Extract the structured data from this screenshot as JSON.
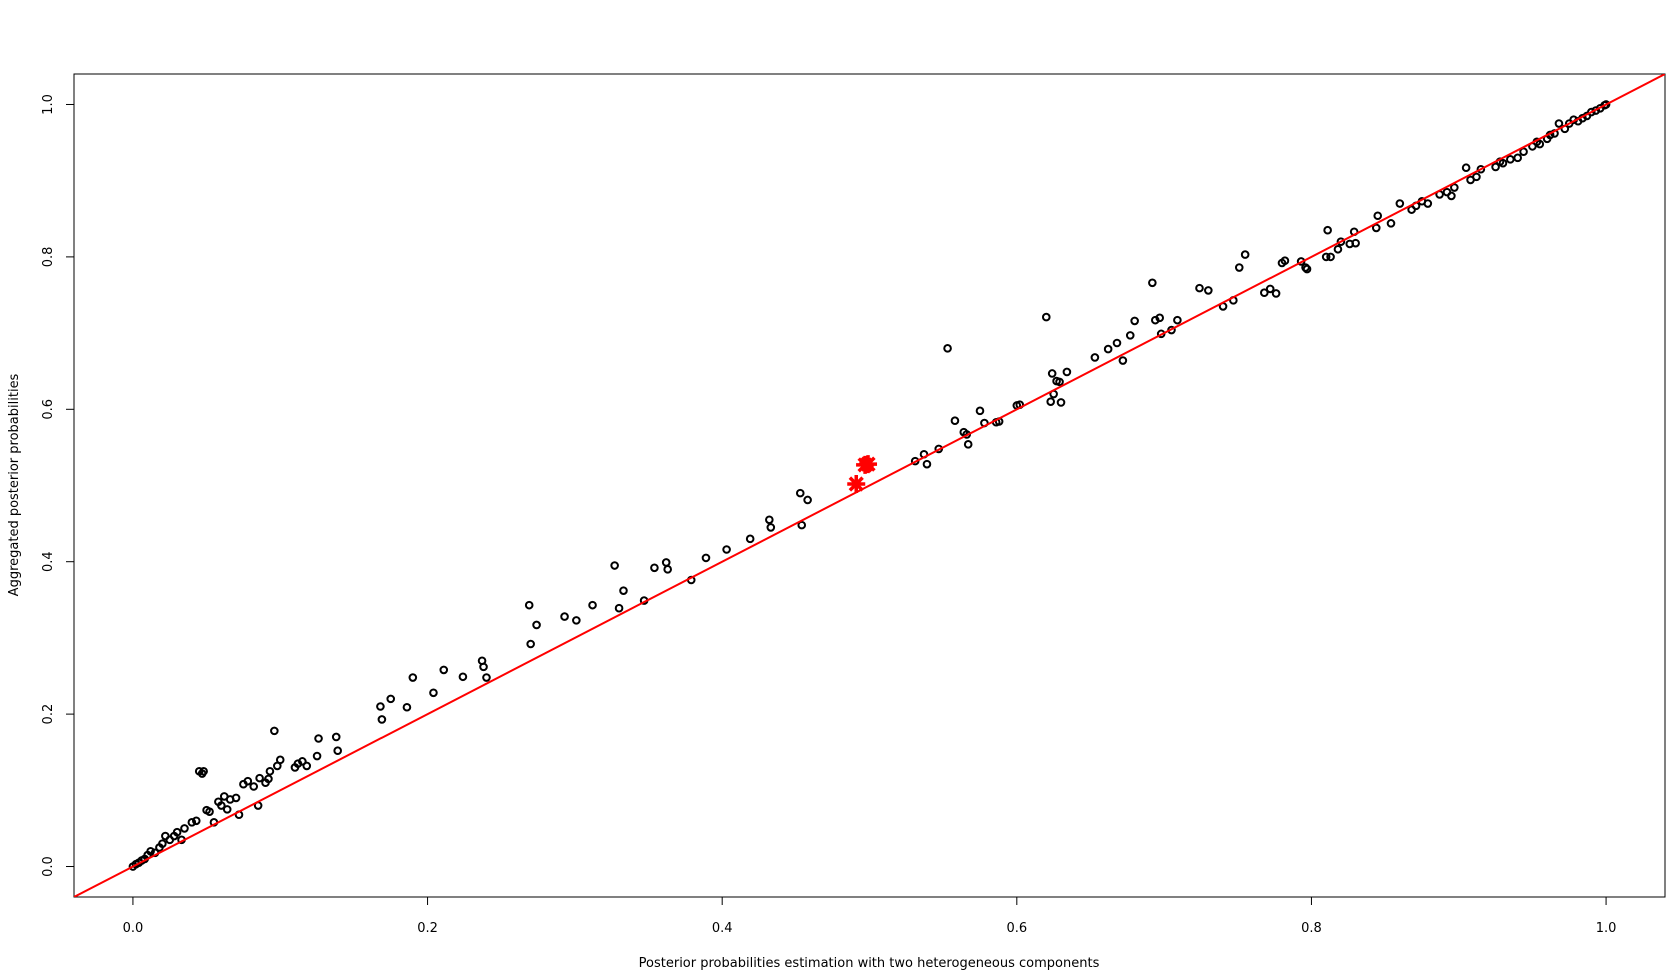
{
  "chart_data": {
    "type": "scatter",
    "x_label": "Posterior probabilities estimation with two heterogeneous components",
    "y_label": "Aggregated posterior probabilities",
    "xlim": [
      -0.04,
      1.04
    ],
    "ylim": [
      -0.04,
      1.04
    ],
    "xticks": [
      {
        "value": 0,
        "label": "0.0"
      },
      0.2,
      0.4,
      0.6,
      0.8,
      {
        "value": 1,
        "label": "1.0"
      }
    ],
    "yticks": [
      {
        "value": 0,
        "label": "0.0"
      },
      0.2,
      0.4,
      0.6,
      0.8,
      {
        "value": 1,
        "label": "1.0"
      }
    ],
    "grid": false,
    "reference_line": {
      "intercept": 0,
      "slope": 1,
      "color": "#ff0000"
    },
    "points": {
      "color": "#000000",
      "x": [
        0,
        0.002,
        0.004,
        0.006,
        0.008,
        0.01,
        0.012,
        0.015,
        0.018,
        0.02,
        0.022,
        0.025,
        0.028,
        0.03,
        0.033,
        0.035,
        0.04,
        0.043,
        0.045,
        0.047,
        0.048,
        0.05,
        0.052,
        0.055,
        0.058,
        0.06,
        0.062,
        0.064,
        0.066,
        0.07,
        0.072,
        0.075,
        0.078,
        0.082,
        0.085,
        0.086,
        0.09,
        0.092,
        0.093,
        0.096,
        0.098,
        0.1,
        0.11,
        0.112,
        0.115,
        0.118,
        0.125,
        0.126,
        0.138,
        0.139,
        0.168,
        0.169,
        0.175,
        0.186,
        0.19,
        0.204,
        0.211,
        0.224,
        0.237,
        0.238,
        0.24,
        0.269,
        0.27,
        0.274,
        0.293,
        0.301,
        0.312,
        0.327,
        0.33,
        0.333,
        0.347,
        0.354,
        0.362,
        0.363,
        0.379,
        0.389,
        0.403,
        0.419,
        0.432,
        0.433,
        0.453,
        0.454,
        0.458,
        0.531,
        0.537,
        0.539,
        0.547,
        0.553,
        0.558,
        0.564,
        0.566,
        0.567,
        0.575,
        0.578,
        0.586,
        0.588,
        0.6,
        0.602,
        0.62,
        0.623,
        0.624,
        0.625,
        0.627,
        0.629,
        0.63,
        0.634,
        0.653,
        0.662,
        0.668,
        0.672,
        0.677,
        0.68,
        0.692,
        0.694,
        0.697,
        0.698,
        0.705,
        0.709,
        0.724,
        0.73,
        0.74,
        0.747,
        0.751,
        0.755,
        0.768,
        0.772,
        0.776,
        0.78,
        0.782,
        0.793,
        0.796,
        0.797,
        0.81,
        0.811,
        0.813,
        0.818,
        0.82,
        0.826,
        0.829,
        0.83,
        0.844,
        0.845,
        0.854,
        0.86,
        0.868,
        0.871,
        0.875,
        0.879,
        0.887,
        0.892,
        0.895,
        0.897,
        0.905,
        0.908,
        0.912,
        0.915,
        0.925,
        0.928,
        0.93,
        0.935,
        0.94,
        0.944,
        0.95,
        0.953,
        0.955,
        0.96,
        0.962,
        0.965,
        0.968,
        0.972,
        0.975,
        0.978,
        0.981,
        0.984,
        0.987,
        0.99,
        0.993,
        0.996,
        0.999,
        1
      ],
      "y": [
        0,
        0.003,
        0.005,
        0.008,
        0.01,
        0.015,
        0.02,
        0.018,
        0.025,
        0.03,
        0.04,
        0.035,
        0.04,
        0.045,
        0.035,
        0.05,
        0.058,
        0.06,
        0.125,
        0.122,
        0.125,
        0.074,
        0.072,
        0.058,
        0.085,
        0.08,
        0.092,
        0.075,
        0.088,
        0.09,
        0.068,
        0.108,
        0.112,
        0.105,
        0.08,
        0.116,
        0.11,
        0.115,
        0.125,
        0.178,
        0.132,
        0.14,
        0.13,
        0.135,
        0.138,
        0.132,
        0.145,
        0.168,
        0.17,
        0.152,
        0.21,
        0.193,
        0.22,
        0.209,
        0.248,
        0.228,
        0.258,
        0.249,
        0.27,
        0.262,
        0.248,
        0.343,
        0.292,
        0.317,
        0.328,
        0.323,
        0.343,
        0.395,
        0.339,
        0.362,
        0.349,
        0.392,
        0.399,
        0.39,
        0.376,
        0.405,
        0.416,
        0.43,
        0.455,
        0.445,
        0.49,
        0.448,
        0.481,
        0.532,
        0.541,
        0.528,
        0.548,
        0.68,
        0.585,
        0.57,
        0.567,
        0.554,
        0.598,
        0.582,
        0.583,
        0.584,
        0.605,
        0.606,
        0.721,
        0.61,
        0.647,
        0.62,
        0.637,
        0.636,
        0.609,
        0.649,
        0.668,
        0.679,
        0.687,
        0.664,
        0.697,
        0.716,
        0.766,
        0.717,
        0.72,
        0.699,
        0.704,
        0.717,
        0.759,
        0.756,
        0.735,
        0.743,
        0.786,
        0.803,
        0.753,
        0.758,
        0.752,
        0.792,
        0.795,
        0.794,
        0.786,
        0.784,
        0.8,
        0.835,
        0.8,
        0.81,
        0.82,
        0.817,
        0.833,
        0.818,
        0.838,
        0.854,
        0.844,
        0.87,
        0.862,
        0.867,
        0.873,
        0.87,
        0.882,
        0.885,
        0.88,
        0.891,
        0.917,
        0.901,
        0.905,
        0.915,
        0.918,
        0.925,
        0.923,
        0.928,
        0.93,
        0.938,
        0.945,
        0.951,
        0.948,
        0.955,
        0.96,
        0.962,
        0.975,
        0.968,
        0.975,
        0.98,
        0.978,
        0.982,
        0.985,
        0.99,
        0.992,
        0.995,
        0.999,
        1
      ]
    },
    "highlight": {
      "color": "#ff0000",
      "x": [
        0.491,
        0.497,
        0.499
      ],
      "y": [
        0.502,
        0.527,
        0.528
      ]
    }
  }
}
